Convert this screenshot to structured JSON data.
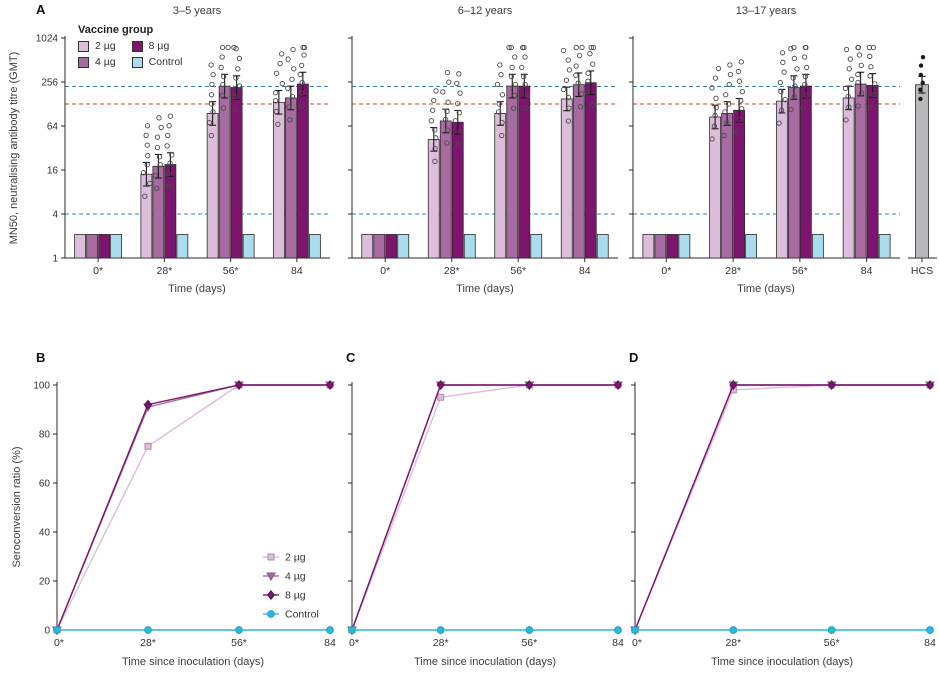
{
  "panels": {
    "a": "A",
    "b": "B",
    "c": "C",
    "d": "D"
  },
  "colors": {
    "g2": "#ddbeda",
    "g2_edge": "#b386ad",
    "g4": "#a76ba2",
    "g4_edge": "#8a5386",
    "g8": "#7d156f",
    "g8_edge": "#5e0f58",
    "control": "#a9dcec",
    "control_edge": "#2aa4c8",
    "control_line": "#29b9de",
    "hcs": "#b9b9bb",
    "dash_blue": "#3a7fa6",
    "dash_red": "#d0432e",
    "axis": "#2b2a29",
    "bar_stroke": "#2f2b2c",
    "point": "#4a4a4a"
  },
  "legend_a": {
    "title": "Vaccine group",
    "items": [
      {
        "label": "2 µg",
        "color": "g2"
      },
      {
        "label": "4 µg",
        "color": "g4"
      },
      {
        "label": "8 µg",
        "color": "g8"
      },
      {
        "label": "Control",
        "color": "control"
      }
    ]
  },
  "chart_data": [
    {
      "id": "A",
      "type": "bar",
      "yscale": "log",
      "ylabel": "MN50, neutralising antibody titre (GMT)",
      "xlabel": "Time (days)",
      "ylim": [
        1,
        1024
      ],
      "yticks": [
        1,
        4,
        16,
        64,
        256,
        1024
      ],
      "categories": [
        "0*",
        "28*",
        "56*",
        "84"
      ],
      "groups": [
        "2 µg",
        "4 µg",
        "8 µg",
        "Control"
      ],
      "reference_lines": [
        {
          "value": 222,
          "color": "dash_blue"
        },
        {
          "value": 128,
          "color": "dash_red"
        },
        {
          "value": 4,
          "color": "dash_blue"
        }
      ],
      "subpanels": [
        {
          "title": "3–5 years",
          "values": {
            "2 µg": [
              2.1,
              14,
              95,
              135
            ],
            "4 µg": [
              2.1,
              18,
              225,
              155
            ],
            "8 µg": [
              2.1,
              19,
              215,
              240
            ],
            "Control": [
              2.1,
              2.1,
              2.1,
              2.1
            ]
          }
        },
        {
          "title": "6–12 years",
          "values": {
            "2 µg": [
              2.1,
              42,
              95,
              150
            ],
            "4 µg": [
              2.1,
              75,
              225,
              235
            ],
            "8 µg": [
              2.1,
              72,
              225,
              250
            ],
            "Control": [
              2.1,
              2.1,
              2.1,
              2.1
            ]
          }
        },
        {
          "title": "13–17 years",
          "values": {
            "2 µg": [
              2.1,
              85,
              140,
              155
            ],
            "4 µg": [
              2.1,
              95,
              215,
              240
            ],
            "8 µg": [
              2.1,
              105,
              225,
              230
            ],
            "Control": [
              2.1,
              2.1,
              2.1,
              2.1
            ]
          }
        }
      ],
      "hcs": {
        "label": "HCS",
        "value": 235
      },
      "overlay_points": true,
      "grid": false,
      "legend_position": "top-left-first-subpanel"
    },
    {
      "id": "B",
      "type": "line",
      "ylabel": "Seroconversion ratio (%)",
      "xlabel": "Time since inoculation (days)",
      "ylim": [
        0,
        100
      ],
      "yticks": [
        0,
        20,
        40,
        60,
        80,
        100
      ],
      "ytick_labels": true,
      "x_labels": [
        "0*",
        "28*",
        "56*",
        "84"
      ],
      "series": [
        {
          "name": "2 µg",
          "marker": "square",
          "color": "g2",
          "edge": "g2_edge",
          "values": [
            0,
            75,
            100,
            100
          ]
        },
        {
          "name": "4 µg",
          "marker": "triangle-down",
          "color": "g4",
          "edge": "g4_edge",
          "values": [
            0,
            91,
            100,
            100
          ]
        },
        {
          "name": "8 µg",
          "marker": "diamond",
          "color": "g8",
          "edge": "g8_edge",
          "values": [
            0,
            92,
            100,
            100
          ]
        },
        {
          "name": "Control",
          "marker": "circle",
          "color": "control_line",
          "edge": "control_edge",
          "values": [
            0,
            0,
            0,
            0
          ]
        }
      ],
      "legend": true
    },
    {
      "id": "C",
      "type": "line",
      "xlabel": "Time since inoculation (days)",
      "ylim": [
        0,
        100
      ],
      "yticks": [
        0,
        20,
        40,
        60,
        80,
        100
      ],
      "ytick_labels": false,
      "x_labels": [
        "0*",
        "28*",
        "56*",
        "84"
      ],
      "series": [
        {
          "name": "2 µg",
          "marker": "square",
          "color": "g2",
          "edge": "g2_edge",
          "values": [
            0,
            95,
            100,
            100
          ]
        },
        {
          "name": "4 µg",
          "marker": "triangle-down",
          "color": "g4",
          "edge": "g4_edge",
          "values": [
            0,
            100,
            100,
            100
          ]
        },
        {
          "name": "8 µg",
          "marker": "diamond",
          "color": "g8",
          "edge": "g8_edge",
          "values": [
            0,
            100,
            100,
            100
          ]
        },
        {
          "name": "Control",
          "marker": "circle",
          "color": "control_line",
          "edge": "control_edge",
          "values": [
            0,
            0,
            0,
            0
          ]
        }
      ],
      "legend": false
    },
    {
      "id": "D",
      "type": "line",
      "xlabel": "Time since inoculation (days)",
      "ylim": [
        0,
        100
      ],
      "yticks": [
        0,
        20,
        40,
        60,
        80,
        100
      ],
      "ytick_labels": false,
      "x_labels": [
        "0*",
        "28*",
        "56*",
        "84"
      ],
      "series": [
        {
          "name": "2 µg",
          "marker": "square",
          "color": "g2",
          "edge": "g2_edge",
          "values": [
            0,
            98,
            100,
            100
          ]
        },
        {
          "name": "4 µg",
          "marker": "triangle-down",
          "color": "g4",
          "edge": "g4_edge",
          "values": [
            0,
            100,
            100,
            100
          ]
        },
        {
          "name": "8 µg",
          "marker": "diamond",
          "color": "g8",
          "edge": "g8_edge",
          "values": [
            0,
            100,
            100,
            100
          ]
        },
        {
          "name": "Control",
          "marker": "circle",
          "color": "control_line",
          "edge": "control_edge",
          "values": [
            0,
            0,
            0,
            0
          ]
        }
      ],
      "legend": false
    }
  ]
}
